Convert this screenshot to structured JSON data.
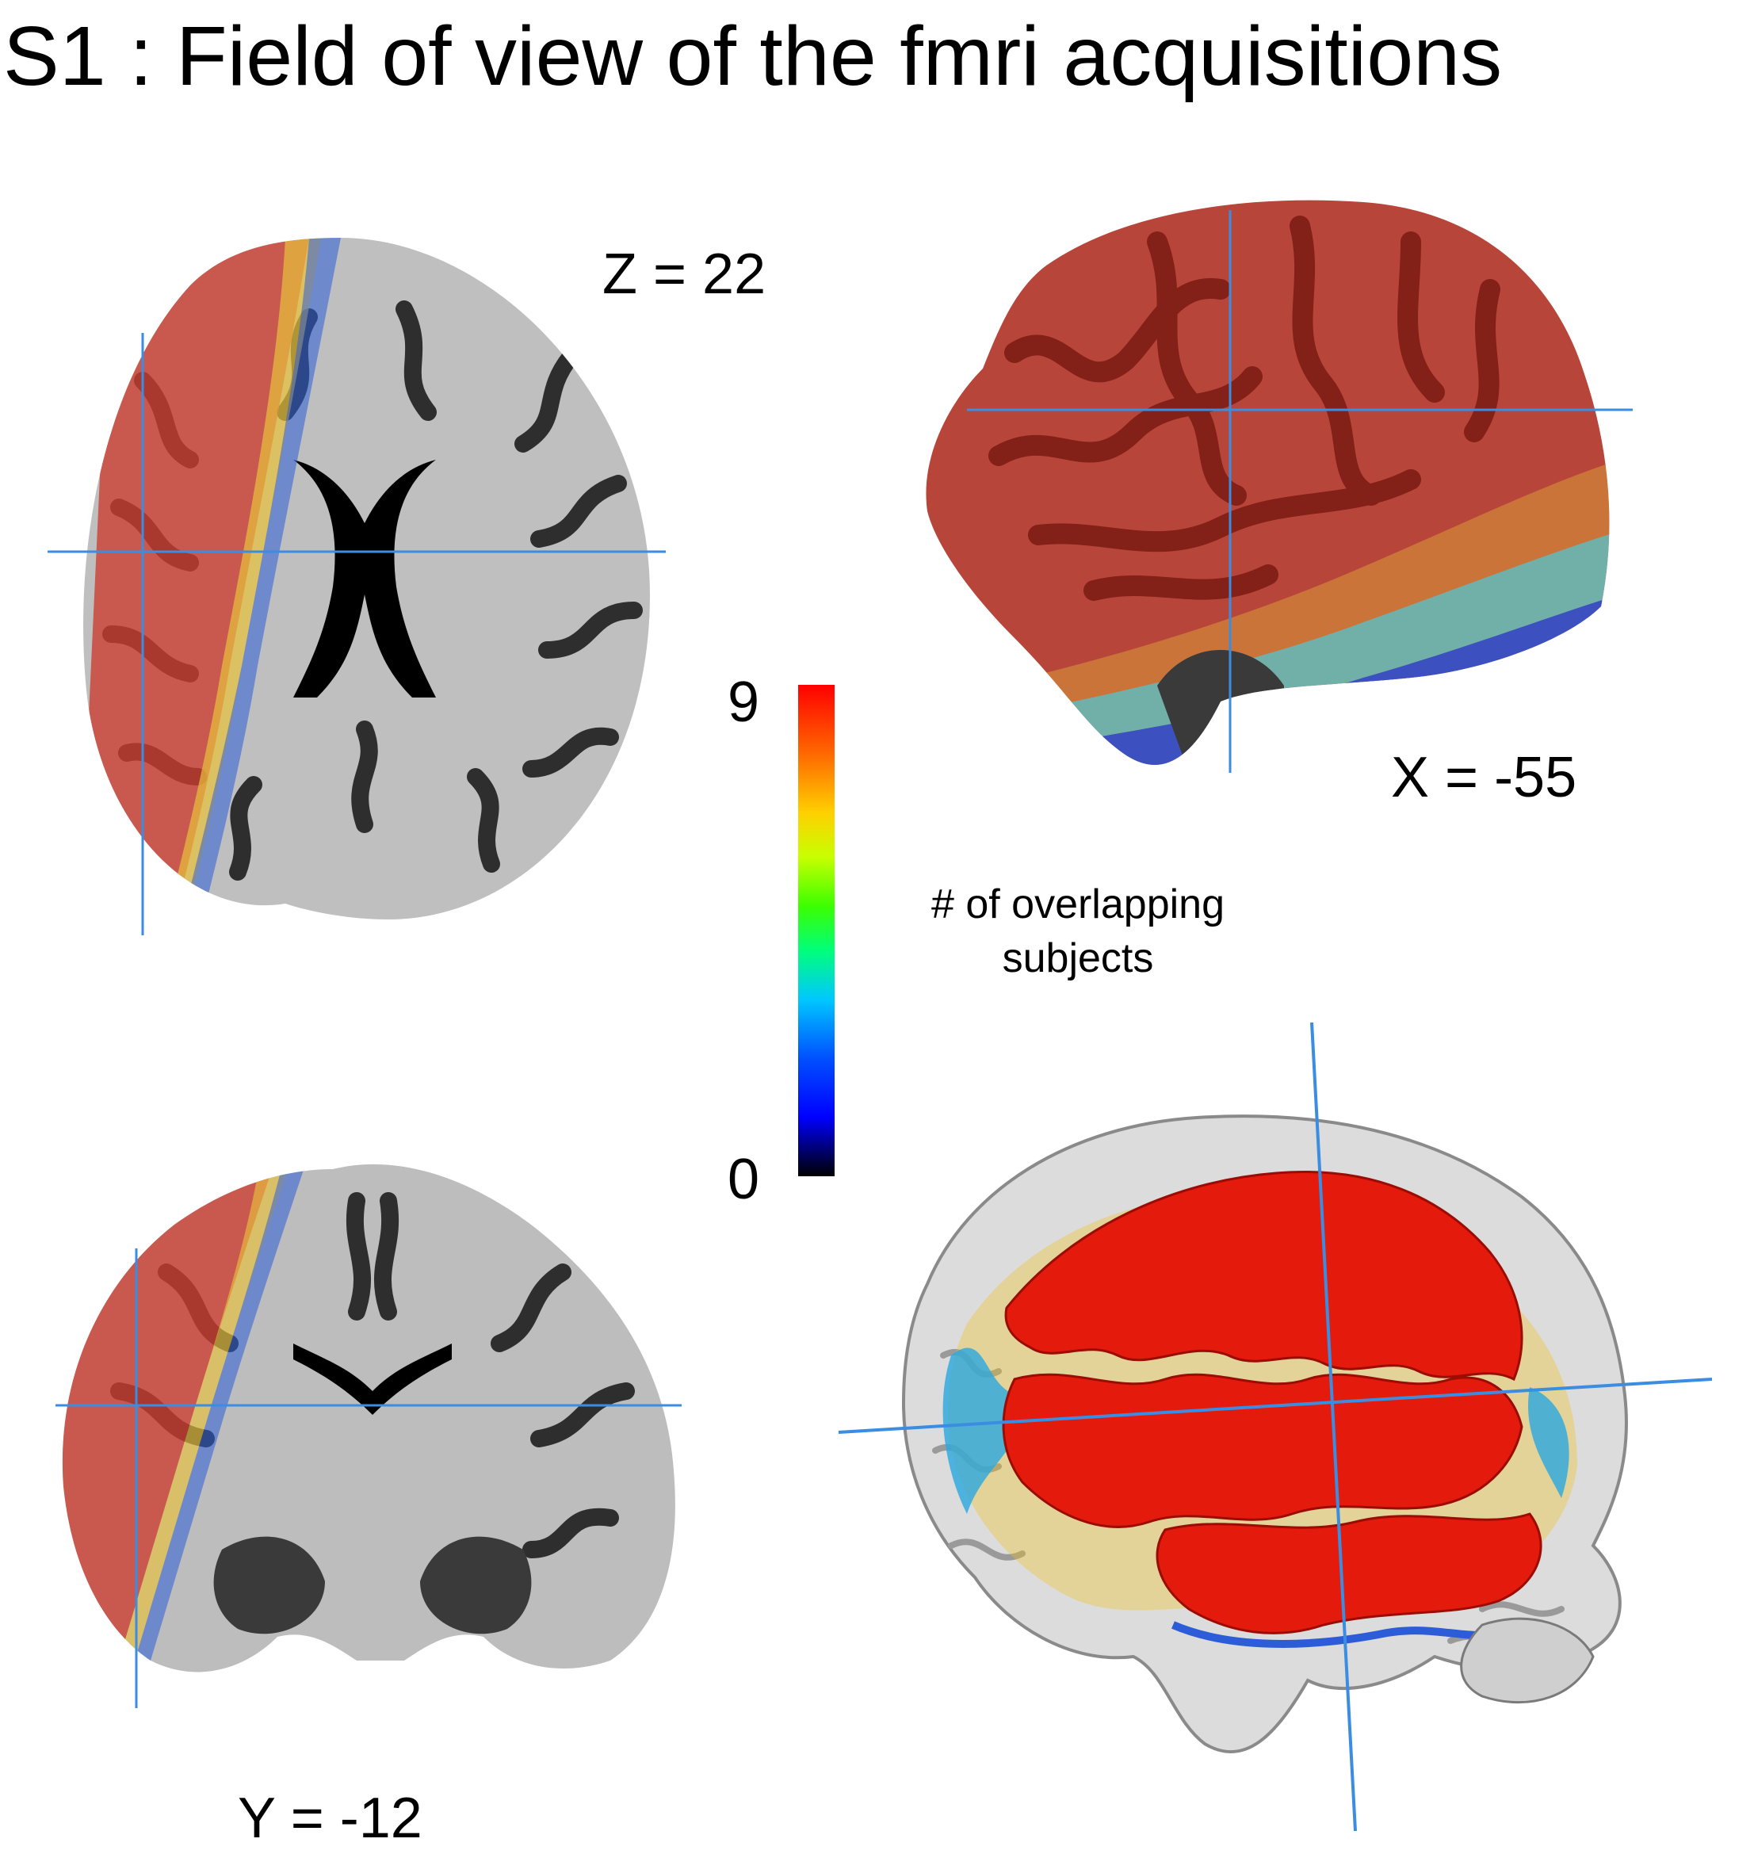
{
  "title": "S1 : Field of view of the fmri acquisitions",
  "panels": {
    "axial": {
      "label": "Z = 22"
    },
    "sagittal": {
      "label": "X = -55"
    },
    "coronal": {
      "label": "Y = -12"
    },
    "render3d": {
      "label": ""
    }
  },
  "colorbar": {
    "max_label": "9",
    "min_label": "0",
    "caption_line1": "# of overlapping",
    "caption_line2": "subjects",
    "colors": [
      "#000000",
      "#0000ff",
      "#00c8ff",
      "#3cff00",
      "#ffd000",
      "#ff7000",
      "#ff0000"
    ]
  },
  "colors": {
    "crosshair": "#3a8de0",
    "overlay_red": "#cc3b2f"
  }
}
